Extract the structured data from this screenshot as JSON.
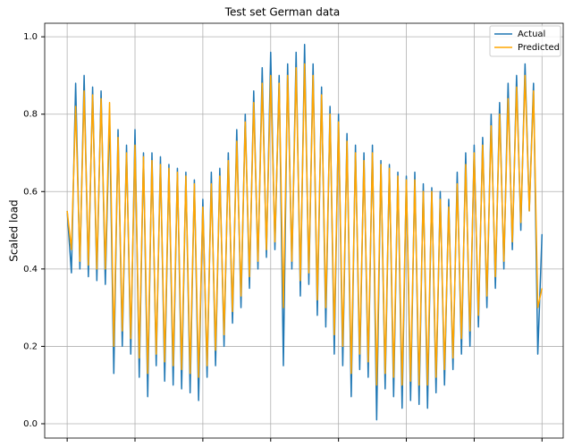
{
  "chart_data": {
    "type": "line",
    "title": "Test set German data",
    "y_label": "Scaled load",
    "series": [
      {
        "name": "Actual",
        "color": "#1f77b4",
        "values": [
          0.55,
          0.39,
          0.88,
          0.4,
          0.9,
          0.38,
          0.87,
          0.37,
          0.86,
          0.36,
          0.8,
          0.13,
          0.76,
          0.2,
          0.72,
          0.18,
          0.76,
          0.12,
          0.7,
          0.07,
          0.7,
          0.15,
          0.69,
          0.11,
          0.67,
          0.1,
          0.66,
          0.09,
          0.65,
          0.08,
          0.63,
          0.06,
          0.58,
          0.12,
          0.65,
          0.15,
          0.66,
          0.2,
          0.7,
          0.26,
          0.76,
          0.3,
          0.8,
          0.35,
          0.86,
          0.4,
          0.92,
          0.43,
          0.96,
          0.45,
          0.9,
          0.15,
          0.93,
          0.4,
          0.96,
          0.33,
          0.98,
          0.36,
          0.93,
          0.28,
          0.87,
          0.25,
          0.82,
          0.18,
          0.8,
          0.15,
          0.75,
          0.07,
          0.72,
          0.14,
          0.7,
          0.12,
          0.72,
          0.01,
          0.68,
          0.09,
          0.67,
          0.07,
          0.65,
          0.04,
          0.64,
          0.06,
          0.65,
          0.05,
          0.62,
          0.04,
          0.61,
          0.08,
          0.6,
          0.1,
          0.58,
          0.14,
          0.65,
          0.18,
          0.7,
          0.2,
          0.72,
          0.25,
          0.74,
          0.3,
          0.8,
          0.35,
          0.83,
          0.4,
          0.88,
          0.45,
          0.9,
          0.5,
          0.93,
          0.55,
          0.88,
          0.18,
          0.49
        ]
      },
      {
        "name": "Predicted",
        "color": "#ffa500",
        "values": [
          0.55,
          0.45,
          0.82,
          0.42,
          0.86,
          0.41,
          0.85,
          0.4,
          0.84,
          0.4,
          0.83,
          0.2,
          0.74,
          0.24,
          0.7,
          0.22,
          0.72,
          0.17,
          0.69,
          0.13,
          0.68,
          0.18,
          0.67,
          0.16,
          0.66,
          0.15,
          0.65,
          0.14,
          0.64,
          0.13,
          0.62,
          0.12,
          0.56,
          0.15,
          0.62,
          0.19,
          0.64,
          0.23,
          0.68,
          0.29,
          0.73,
          0.33,
          0.78,
          0.38,
          0.83,
          0.42,
          0.88,
          0.45,
          0.9,
          0.47,
          0.88,
          0.3,
          0.9,
          0.42,
          0.92,
          0.37,
          0.93,
          0.39,
          0.9,
          0.32,
          0.85,
          0.3,
          0.8,
          0.23,
          0.78,
          0.2,
          0.73,
          0.13,
          0.7,
          0.18,
          0.68,
          0.16,
          0.7,
          0.1,
          0.67,
          0.13,
          0.66,
          0.12,
          0.64,
          0.1,
          0.63,
          0.11,
          0.63,
          0.1,
          0.6,
          0.1,
          0.6,
          0.12,
          0.58,
          0.14,
          0.56,
          0.17,
          0.62,
          0.22,
          0.67,
          0.24,
          0.7,
          0.28,
          0.72,
          0.33,
          0.77,
          0.38,
          0.8,
          0.42,
          0.84,
          0.47,
          0.87,
          0.52,
          0.9,
          0.55,
          0.86,
          0.3,
          0.35
        ]
      }
    ],
    "xlim": [
      -5.3,
      117
    ],
    "xticks": [
      0,
      16,
      32,
      48,
      64,
      80,
      96,
      112
    ],
    "ylim": [
      -0.037,
      1.035
    ],
    "yticks": [
      {
        "value": 0,
        "label": "0.0"
      },
      0.2,
      0.4,
      0.6,
      0.8,
      {
        "value": 1,
        "label": "1.0"
      }
    ],
    "grid": true,
    "legend": "upper right"
  }
}
